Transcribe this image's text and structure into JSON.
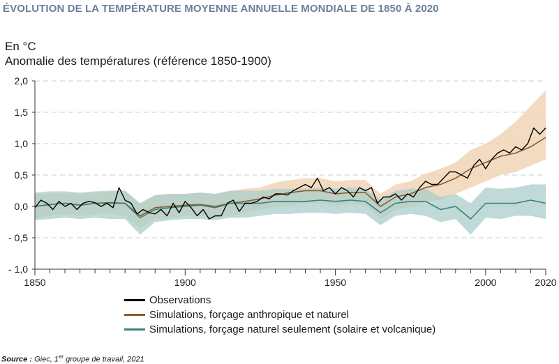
{
  "title": "ÉVOLUTION DE LA TEMPÉRATURE MOYENNE ANNUELLE MONDIALE DE 1850 À 2020",
  "source": {
    "label": "Source :",
    "text_before": "Giec, 1",
    "superscript": "er",
    "text_after": " groupe de travail, 2021"
  },
  "chart_data": {
    "type": "line",
    "unit_label": "En °C",
    "ylabel": "Anomalie des températures (référence 1850-1900)",
    "xlim": [
      1850,
      2020
    ],
    "ylim": [
      -1.0,
      2.0
    ],
    "yticks": [
      {
        "value": 2.0,
        "label": "2,0"
      },
      {
        "value": 1.5,
        "label": "1,5"
      },
      {
        "value": 1.0,
        "label": "1,0"
      },
      {
        "value": 0.5,
        "label": "0,5"
      },
      {
        "value": 0.0,
        "label": "0,0"
      },
      {
        "value": -0.5,
        "label": "- 0,5"
      },
      {
        "value": -1.0,
        "label": "- 1,0"
      }
    ],
    "xticks": [
      1850,
      1900,
      1950,
      2000,
      2020
    ],
    "grid": "horizontal dashed",
    "legend_position": "bottom",
    "x_years": [
      1850,
      1855,
      1860,
      1865,
      1870,
      1875,
      1880,
      1885,
      1890,
      1895,
      1900,
      1905,
      1910,
      1915,
      1920,
      1925,
      1930,
      1935,
      1940,
      1945,
      1950,
      1955,
      1960,
      1965,
      1970,
      1975,
      1980,
      1985,
      1990,
      1995,
      2000,
      2005,
      2010,
      2015,
      2020
    ],
    "series": [
      {
        "name": "Observations",
        "color": "#000000",
        "x": [
          1850,
          1852,
          1854,
          1856,
          1858,
          1860,
          1862,
          1864,
          1866,
          1868,
          1870,
          1872,
          1874,
          1876,
          1878,
          1880,
          1882,
          1884,
          1886,
          1888,
          1890,
          1892,
          1894,
          1896,
          1898,
          1900,
          1902,
          1904,
          1906,
          1908,
          1910,
          1912,
          1914,
          1916,
          1918,
          1920,
          1922,
          1924,
          1926,
          1928,
          1930,
          1932,
          1934,
          1936,
          1938,
          1940,
          1942,
          1944,
          1946,
          1948,
          1950,
          1952,
          1954,
          1956,
          1958,
          1960,
          1962,
          1964,
          1966,
          1968,
          1970,
          1972,
          1974,
          1976,
          1978,
          1980,
          1982,
          1984,
          1986,
          1988,
          1990,
          1992,
          1994,
          1996,
          1998,
          2000,
          2002,
          2004,
          2006,
          2008,
          2010,
          2012,
          2014,
          2016,
          2018,
          2020
        ],
        "values": [
          -0.02,
          0.1,
          0.05,
          -0.05,
          0.08,
          0.0,
          0.05,
          -0.05,
          0.05,
          0.08,
          0.06,
          0.0,
          0.05,
          -0.02,
          0.3,
          0.1,
          0.05,
          -0.12,
          -0.05,
          -0.1,
          -0.12,
          -0.05,
          -0.15,
          0.05,
          -0.1,
          0.08,
          -0.02,
          -0.15,
          -0.05,
          -0.2,
          -0.15,
          -0.15,
          0.05,
          0.1,
          -0.08,
          0.05,
          0.05,
          0.08,
          0.15,
          0.12,
          0.2,
          0.2,
          0.18,
          0.25,
          0.3,
          0.35,
          0.3,
          0.45,
          0.25,
          0.3,
          0.2,
          0.3,
          0.25,
          0.15,
          0.3,
          0.25,
          0.3,
          0.05,
          0.15,
          0.15,
          0.2,
          0.1,
          0.2,
          0.15,
          0.3,
          0.4,
          0.35,
          0.35,
          0.45,
          0.55,
          0.55,
          0.5,
          0.45,
          0.65,
          0.75,
          0.6,
          0.75,
          0.85,
          0.9,
          0.85,
          0.95,
          0.9,
          1.0,
          1.25,
          1.15,
          1.25
        ]
      },
      {
        "name": "Simulations, forçage anthropique et naturel",
        "color": "#8c5a2b",
        "band_color": "#efd2b0",
        "x": [
          1850,
          1855,
          1860,
          1865,
          1870,
          1875,
          1880,
          1885,
          1890,
          1895,
          1900,
          1905,
          1910,
          1915,
          1920,
          1925,
          1930,
          1935,
          1940,
          1945,
          1950,
          1955,
          1960,
          1965,
          1970,
          1975,
          1980,
          1985,
          1990,
          1995,
          2000,
          2005,
          2010,
          2015,
          2020
        ],
        "values": [
          0.0,
          0.03,
          0.05,
          0.02,
          0.05,
          0.06,
          0.05,
          -0.15,
          -0.02,
          0.0,
          0.02,
          0.03,
          0.0,
          0.05,
          0.08,
          0.12,
          0.18,
          0.22,
          0.25,
          0.25,
          0.2,
          0.22,
          0.22,
          0.0,
          0.15,
          0.2,
          0.3,
          0.35,
          0.45,
          0.6,
          0.7,
          0.8,
          0.85,
          0.95,
          1.1
        ],
        "lower": [
          -0.2,
          -0.15,
          -0.12,
          -0.15,
          -0.12,
          -0.12,
          -0.15,
          -0.35,
          -0.2,
          -0.18,
          -0.15,
          -0.15,
          -0.18,
          -0.15,
          -0.1,
          -0.05,
          0.0,
          0.02,
          0.05,
          0.05,
          0.02,
          0.03,
          0.02,
          -0.2,
          -0.05,
          0.0,
          0.08,
          0.1,
          0.2,
          0.3,
          0.4,
          0.5,
          0.55,
          0.65,
          0.75
        ],
        "upper": [
          0.2,
          0.2,
          0.22,
          0.2,
          0.22,
          0.24,
          0.25,
          0.05,
          0.18,
          0.2,
          0.2,
          0.22,
          0.2,
          0.25,
          0.28,
          0.3,
          0.38,
          0.42,
          0.45,
          0.45,
          0.4,
          0.42,
          0.42,
          0.2,
          0.35,
          0.4,
          0.52,
          0.6,
          0.7,
          0.9,
          1.0,
          1.15,
          1.35,
          1.6,
          1.85
        ]
      },
      {
        "name": "Simulations, forçage naturel seulement (solaire et volcanique)",
        "color": "#3d7f7a",
        "band_color": "#a9cdc9",
        "x": [
          1850,
          1855,
          1860,
          1865,
          1870,
          1875,
          1880,
          1885,
          1890,
          1895,
          1900,
          1905,
          1910,
          1915,
          1920,
          1925,
          1930,
          1935,
          1940,
          1945,
          1950,
          1955,
          1960,
          1965,
          1970,
          1975,
          1980,
          1985,
          1990,
          1995,
          2000,
          2005,
          2010,
          2015,
          2020
        ],
        "values": [
          0.0,
          0.03,
          0.05,
          0.02,
          0.05,
          0.05,
          0.05,
          -0.18,
          -0.05,
          -0.02,
          0.0,
          0.02,
          -0.02,
          0.05,
          0.05,
          0.05,
          0.08,
          0.08,
          0.08,
          0.1,
          0.08,
          0.1,
          0.08,
          -0.1,
          0.05,
          0.08,
          0.08,
          -0.05,
          0.0,
          -0.2,
          0.05,
          0.05,
          0.05,
          0.1,
          0.05
        ],
        "lower": [
          -0.22,
          -0.2,
          -0.18,
          -0.2,
          -0.18,
          -0.2,
          -0.2,
          -0.45,
          -0.25,
          -0.22,
          -0.2,
          -0.2,
          -0.22,
          -0.18,
          -0.18,
          -0.15,
          -0.12,
          -0.12,
          -0.1,
          -0.1,
          -0.12,
          -0.1,
          -0.12,
          -0.3,
          -0.15,
          -0.12,
          -0.15,
          -0.25,
          -0.2,
          -0.45,
          -0.18,
          -0.2,
          -0.15,
          -0.15,
          -0.2
        ],
        "upper": [
          0.22,
          0.24,
          0.24,
          0.22,
          0.24,
          0.25,
          0.25,
          0.05,
          0.18,
          0.2,
          0.2,
          0.22,
          0.2,
          0.25,
          0.25,
          0.25,
          0.28,
          0.28,
          0.28,
          0.3,
          0.28,
          0.3,
          0.28,
          0.1,
          0.25,
          0.28,
          0.28,
          0.15,
          0.2,
          0.05,
          0.3,
          0.28,
          0.3,
          0.35,
          0.35
        ]
      }
    ]
  }
}
